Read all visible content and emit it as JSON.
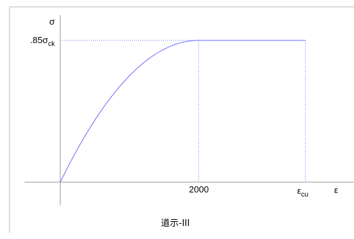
{
  "diagram": {
    "caption": "道示-III",
    "y_axis_symbol": "σ",
    "x_axis_symbol": "ε",
    "y_level_label": {
      "prefix": ".85σ",
      "subscript": "ck"
    },
    "x_ticks": [
      {
        "label": "2000"
      },
      {
        "label": "ε",
        "subscript": "cu"
      }
    ],
    "colors": {
      "curve": "#6b6bff",
      "axes": "#9a9a9a",
      "guide": "#6b6bff",
      "frame": "#b8b8b8"
    },
    "curve": {
      "type": "parabola-rectangle",
      "parabola_until": "2000",
      "plateau_until": "εcu",
      "peak_level": ".85σck"
    }
  }
}
